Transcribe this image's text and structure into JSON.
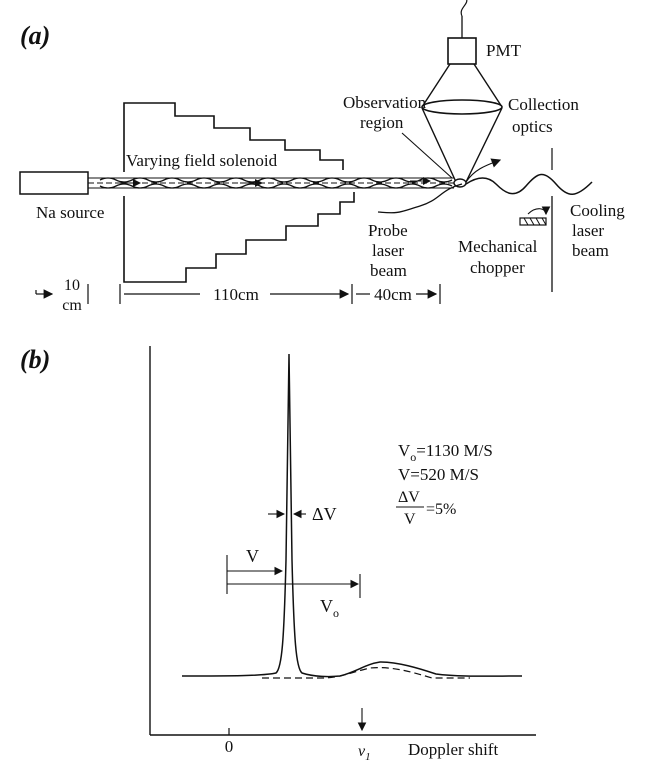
{
  "panel_a": {
    "letter": "(a)",
    "pmt": "PMT",
    "observation_region": [
      "Observation",
      "region"
    ],
    "collection_optics": [
      "Collection",
      "optics"
    ],
    "solenoid": "Varying field solenoid",
    "na_source": "Na source",
    "probe_beam": [
      "Probe",
      "laser",
      "beam"
    ],
    "chopper": [
      "Mechanical",
      "chopper"
    ],
    "cooling_beam": [
      "Cooling",
      "laser",
      "beam"
    ],
    "dim_10_top": "10",
    "dim_10_bottom": "cm",
    "dim_110": "110cm",
    "dim_40": "40cm"
  },
  "panel_b": {
    "letter": "(b)",
    "v0_eq": "=1130 M/S",
    "v_eq": "V=520 M/S",
    "ratio_num": "ΔV",
    "ratio_den": "V",
    "ratio_val": "=5%",
    "delta_v": "ΔV",
    "v_label": "V",
    "v0_label": "V",
    "v0_sub": "o",
    "zero": "0",
    "doppler": "Doppler shift",
    "nu1": "ν",
    "nu1_sub": "1"
  }
}
